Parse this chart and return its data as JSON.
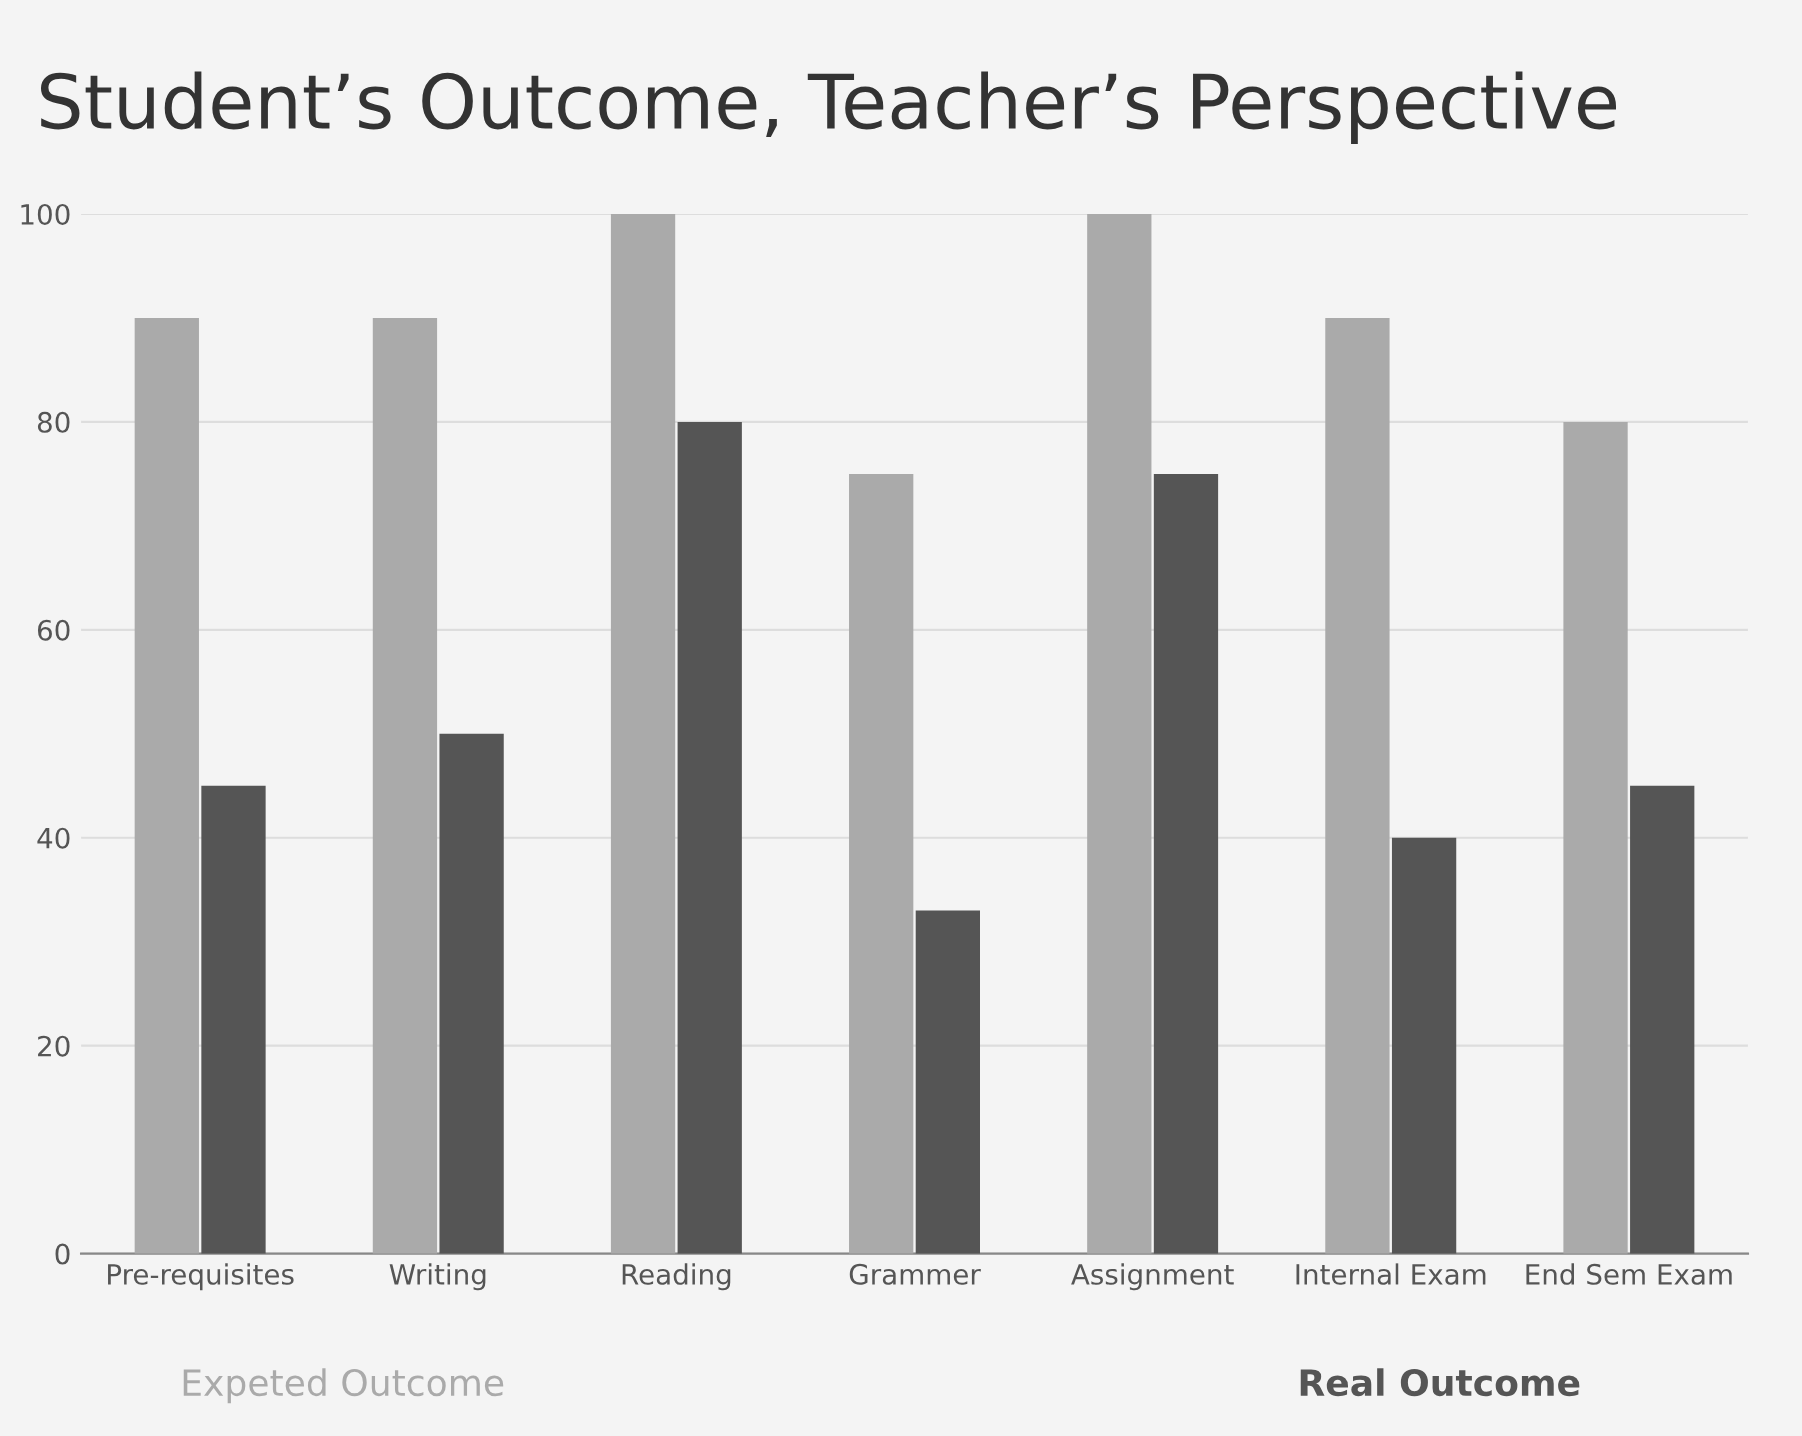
{
  "chart_data": {
    "type": "bar",
    "title": "Student’s Outcome, Teacher’s Perspective",
    "categories": [
      "Pre-requisites",
      "Writing",
      "Reading",
      "Grammer",
      "Assignment",
      "Internal Exam",
      "End Sem Exam"
    ],
    "series": [
      {
        "name": "Expeted Outcome",
        "color": "#aaaaaa",
        "values": [
          90,
          90,
          100,
          75,
          100,
          90,
          80
        ]
      },
      {
        "name": "Real Outcome",
        "color": "#555555",
        "values": [
          45,
          50,
          80,
          33,
          75,
          40,
          45
        ]
      }
    ],
    "ylim": [
      0,
      100
    ],
    "yticks": [
      0,
      20,
      40,
      60,
      80,
      100
    ],
    "grid": "y",
    "legend": "bottom"
  }
}
